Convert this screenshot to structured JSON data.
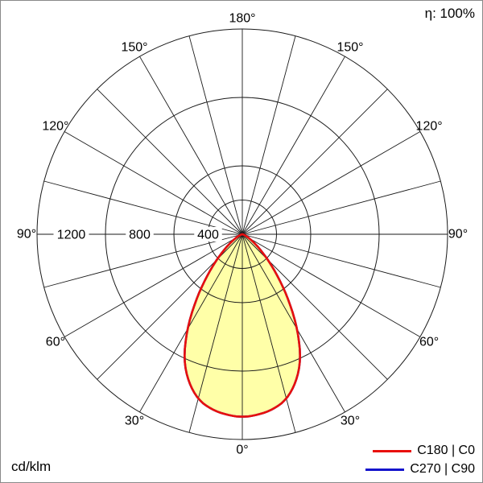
{
  "chart_data": {
    "type": "polar",
    "units": "cd/klm",
    "efficiency_label": "η: 100%",
    "center": {
      "x": 300,
      "y": 290
    },
    "outer_radius_px": 255,
    "radial_max": 1200,
    "rings": [
      200,
      400,
      800,
      1200
    ],
    "ring_label_values": [
      1200,
      800,
      400
    ],
    "spoke_step_deg": 15,
    "angle_label_step_deg": 30,
    "angle_labels": [
      "0°",
      "30°",
      "60°",
      "90°",
      "120°",
      "150°",
      "180°"
    ],
    "fill_color": "#ffffa8",
    "grid_color": "#1a1a1a",
    "series": [
      {
        "name": "C180 | C0",
        "color": "#e8100c",
        "angles_deg": [
          0,
          5,
          10,
          15,
          20,
          25,
          30,
          35,
          40,
          45,
          50,
          55,
          60,
          65,
          70,
          75,
          80,
          85,
          90
        ],
        "values": [
          1070,
          1060,
          1040,
          1000,
          920,
          810,
          650,
          480,
          330,
          215,
          135,
          80,
          45,
          25,
          12,
          5,
          2,
          1,
          0
        ]
      },
      {
        "name": "C270 | C90",
        "color": "#1414cc",
        "angles_deg": [
          0,
          5,
          10,
          15,
          20,
          25,
          30,
          35,
          40,
          45,
          50,
          55,
          60,
          65,
          70,
          75,
          80,
          85,
          90
        ],
        "values": [
          1070,
          1060,
          1040,
          1000,
          920,
          810,
          650,
          480,
          330,
          215,
          135,
          80,
          45,
          25,
          12,
          5,
          2,
          1,
          0
        ]
      }
    ]
  }
}
